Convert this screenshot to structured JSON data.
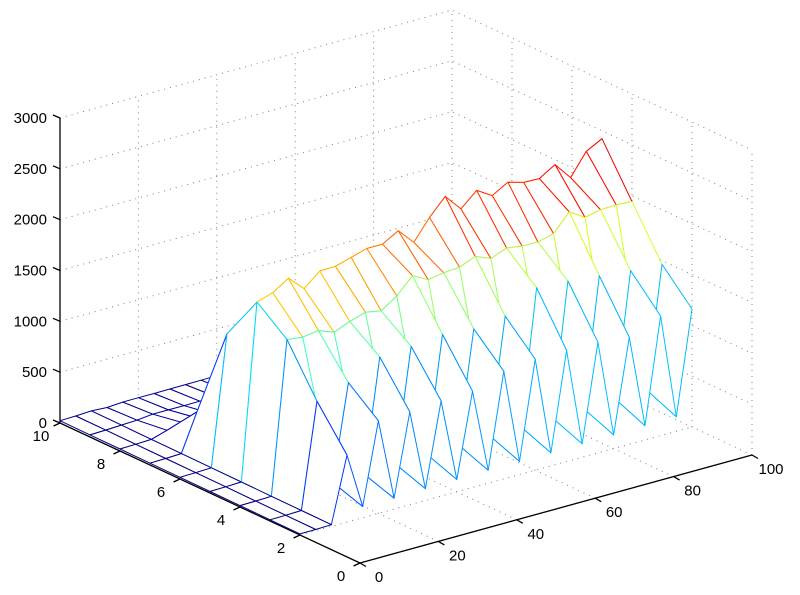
{
  "figure": {
    "background": "#ffffff",
    "axis_color": "#000000",
    "grid_color": "#7f7f7f",
    "tick_label_color": "#000000",
    "tick_font_size": 15
  },
  "chart_data": {
    "type": "mesh3d-wireframe",
    "title": "",
    "xlabel": "",
    "ylabel": "",
    "zlabel": "",
    "colormap": "jet",
    "grid": true,
    "view": {
      "azimuth": -37.5,
      "elevation": 30
    },
    "xlim": [
      0,
      100
    ],
    "ylim": [
      0,
      10
    ],
    "zlim": [
      0,
      3000
    ],
    "x_ticks": [
      0,
      20,
      40,
      60,
      80,
      100
    ],
    "y_ticks": [
      0,
      2,
      4,
      6,
      8,
      10
    ],
    "z_ticks": [
      0,
      500,
      1000,
      1500,
      2000,
      2500,
      3000
    ],
    "x": [
      0,
      4,
      8,
      12,
      16,
      20,
      24,
      28,
      32,
      36,
      40,
      44,
      48,
      52,
      56,
      60,
      64,
      68,
      72,
      76,
      80,
      84,
      88,
      92,
      96,
      100
    ],
    "y": [
      2,
      3,
      4,
      5,
      6,
      7,
      8,
      9,
      10
    ],
    "z": [
      [
        11,
        12,
        16,
        658,
        110,
        911,
        107,
        913,
        116,
        937,
        121,
        947,
        127,
        1058,
        129,
        1093,
        129,
        1092,
        132,
        1089,
        135,
        1052,
        140,
        1176,
        143,
        1161
      ],
      [
        12,
        14,
        18,
        1050,
        210,
        1148,
        205,
        1315,
        221,
        1335,
        231,
        1367,
        242,
        1337,
        247,
        1377,
        247,
        1571,
        252,
        1553,
        257,
        1519,
        268,
        1485,
        273,
        1463
      ],
      [
        14,
        16,
        20,
        1520,
        1500,
        1523,
        1463,
        1526,
        1575,
        1546,
        1650,
        1808,
        1725,
        1751,
        1763,
        1827,
        1763,
        1824,
        1800,
        1798,
        1838,
        2009,
        1913,
        1946,
        1950,
        1942
      ],
      [
        15,
        18,
        23,
        1750,
        1800,
        1900,
        1755,
        1886,
        1890,
        1935,
        1980,
        1980,
        2070,
        1913,
        2115,
        2280,
        2115,
        2254,
        2160,
        2250,
        2205,
        2200,
        2295,
        2125,
        2340,
        2423
      ],
      [
        17,
        19,
        25,
        1300,
        880,
        1267,
        858,
        1255,
        924,
        1471,
        968,
        1490,
        1012,
        1458,
        1034,
        1521,
        1034,
        1499,
        1056,
        1710,
        1078,
        1656,
        1122,
        1620,
        1144,
        1616
      ],
      [
        18,
        21,
        27,
        396,
        175,
        547,
        171,
        549,
        184,
        563,
        193,
        569,
        201,
        636,
        206,
        657,
        206,
        656,
        210,
        655,
        214,
        632,
        223,
        707,
        228,
        698
      ],
      [
        20,
        23,
        29,
        76,
        108,
        108,
        105,
        111,
        113,
        116,
        119,
        122,
        124,
        122,
        127,
        130,
        127,
        132,
        130,
        135,
        132,
        135,
        138,
        135,
        140,
        138
      ],
      [
        21,
        25,
        32,
        38,
        54,
        54,
        53,
        55,
        57,
        58,
        59,
        61,
        62,
        61,
        63,
        65,
        63,
        66,
        65,
        68,
        66,
        68,
        69,
        68,
        70,
        69
      ],
      [
        23,
        26,
        34,
        25,
        36,
        36,
        35,
        37,
        38,
        39,
        40,
        41,
        41,
        41,
        42,
        43,
        42,
        44,
        43,
        45,
        44,
        45,
        46,
        47,
        47,
        46
      ]
    ]
  }
}
